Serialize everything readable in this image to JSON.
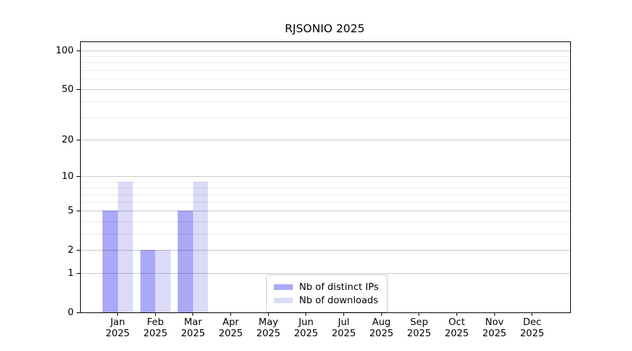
{
  "chart_data": {
    "type": "bar",
    "title": "RJSONIO 2025",
    "categories": [
      "Jan",
      "Feb",
      "Mar",
      "Apr",
      "May",
      "Jun",
      "Jul",
      "Aug",
      "Sep",
      "Oct",
      "Nov",
      "Dec"
    ],
    "category_year": "2025",
    "series": [
      {
        "name": "Nb of distinct IPs",
        "color": "#a9a9f6",
        "values": [
          5,
          2,
          5,
          0,
          0,
          0,
          0,
          0,
          0,
          0,
          0,
          0
        ]
      },
      {
        "name": "Nb of downloads",
        "color": "#dbdbf8",
        "values": [
          9,
          2,
          9,
          0,
          0,
          0,
          0,
          0,
          0,
          0,
          0,
          0
        ]
      }
    ],
    "y_axis": {
      "scale": "log1p",
      "ylim": [
        0,
        100
      ],
      "ticks": [
        0,
        1,
        2,
        5,
        10,
        20,
        50,
        100
      ],
      "minor_ticks": [
        3,
        4,
        6,
        7,
        8,
        9,
        30,
        40,
        60,
        70,
        80,
        90
      ]
    },
    "xlabel": "",
    "ylabel": "",
    "grid": true,
    "legend_position": "inside-bottom-center",
    "colors": {
      "major_grid": "rgba(0,0,0,0.21)",
      "minor_grid": "rgba(0,0,0,0.08)",
      "axis": "#000000",
      "background": "#ffffff"
    }
  }
}
